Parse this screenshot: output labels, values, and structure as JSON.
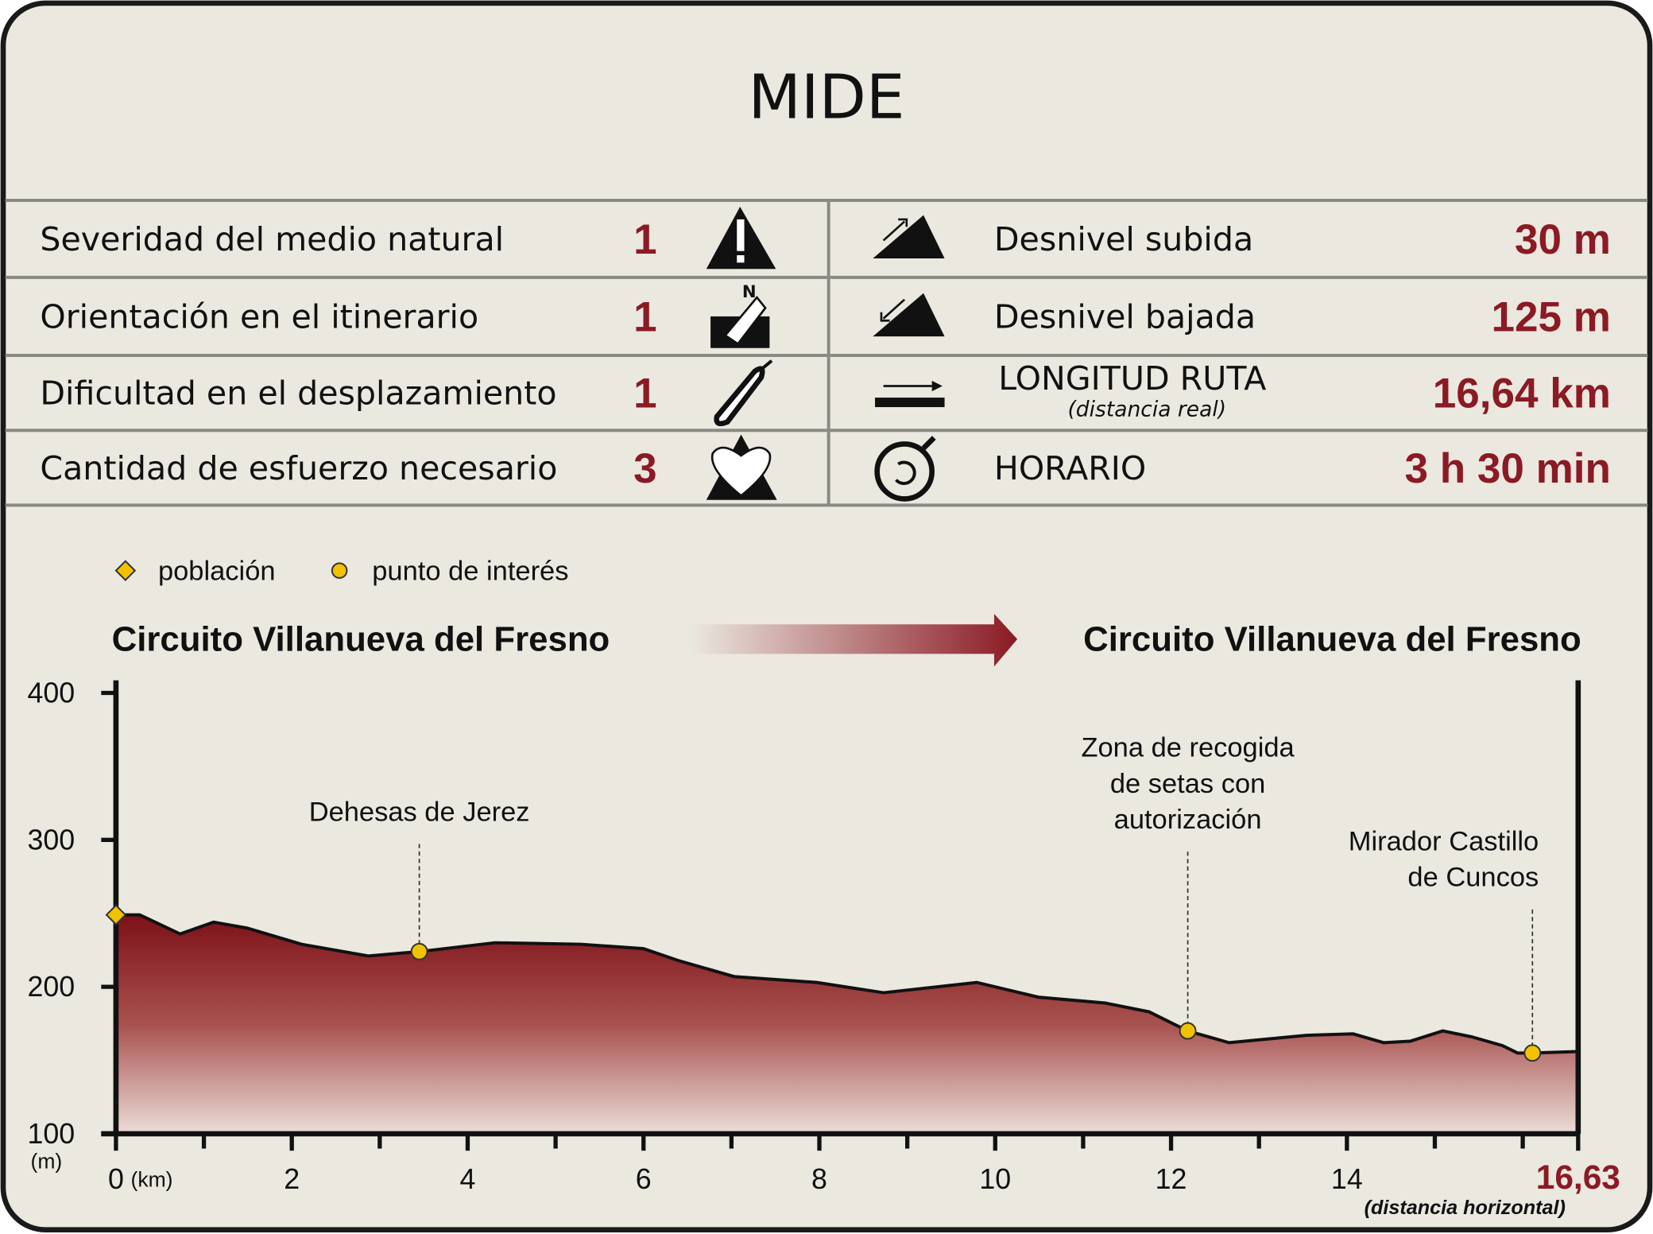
{
  "title": "MIDE",
  "table": {
    "rows": [
      {
        "left": {
          "label": "Severidad del medio natural",
          "value": "1"
        },
        "right": {
          "label": "Desnivel subida",
          "value": "30 m"
        }
      },
      {
        "left": {
          "label": "Orientación en el itinerario",
          "value": "1"
        },
        "right": {
          "label": "Desnivel bajada",
          "value": "125 m"
        }
      },
      {
        "left": {
          "label": "Dificultad en el desplazamiento",
          "value": "1"
        },
        "right": {
          "label": "LONGITUD RUTA",
          "sub": "(distancia real)",
          "value": "16,64 km"
        }
      },
      {
        "left": {
          "label": "Cantidad de esfuerzo necesario",
          "value": "3"
        },
        "right": {
          "label": "HORARIO",
          "value": "3 h 30 min"
        }
      }
    ]
  },
  "chart_data": {
    "type": "area",
    "start_label": "Circuito Villanueva del Fresno",
    "end_label": "Circuito Villanueva del Fresno",
    "color": "#8b1a24",
    "x": [
      0,
      0.27,
      0.73,
      1.11,
      1.49,
      2.11,
      2.87,
      3.45,
      4.31,
      5.28,
      6.0,
      6.39,
      7.03,
      7.97,
      8.73,
      9.79,
      10.49,
      11.25,
      11.75,
      12.19,
      12.66,
      13.54,
      14.07,
      14.42,
      14.72,
      15.09,
      15.42,
      15.77,
      15.94,
      16.11,
      16.63
    ],
    "values": [
      249,
      249,
      236,
      244,
      240,
      229,
      221,
      224,
      230,
      229,
      226,
      218,
      207,
      203,
      196,
      203,
      193,
      189,
      183,
      170,
      162,
      167,
      168,
      162,
      163,
      170,
      166,
      160,
      155,
      155,
      156
    ],
    "series": [
      {
        "name": "población",
        "marker": "diamond",
        "color": "#f2c200",
        "x": [
          0
        ],
        "values": [
          249
        ]
      },
      {
        "name": "punto de interés",
        "marker": "circle",
        "color": "#f2c200",
        "x": [
          3.45,
          12.19,
          16.11
        ],
        "values": [
          224,
          170,
          155
        ],
        "labels": [
          [
            "Dehesas de Jerez"
          ],
          [
            "Zona de recogida",
            "de setas con",
            "autorización"
          ],
          [
            "Mirador Castillo",
            "de Cuncos"
          ]
        ]
      }
    ],
    "xlim": [
      0,
      16.63
    ],
    "xticks": [
      0,
      2,
      4,
      6,
      8,
      10,
      12,
      14,
      {
        "value": 16.63,
        "label": "16,63"
      }
    ],
    "xminorticks": [
      1,
      3,
      5,
      7,
      9,
      11,
      13,
      15,
      16
    ],
    "ylim": [
      100,
      400
    ],
    "yticks": [
      100,
      200,
      300,
      400
    ],
    "x_unit": "(km)",
    "y_unit": "(m)",
    "x_note": "(distancia horizontal)"
  }
}
